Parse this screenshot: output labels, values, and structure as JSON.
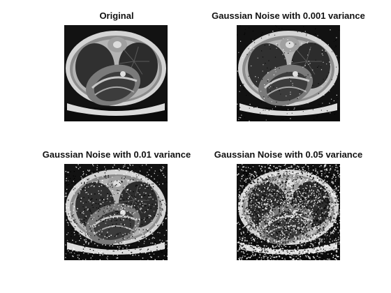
{
  "figure": {
    "panels": [
      {
        "id": "original",
        "title": "Original",
        "noise_variance": 0
      },
      {
        "id": "noise-0001",
        "title": "Gaussian Noise with 0.001 variance",
        "noise_variance": 0.001
      },
      {
        "id": "noise-001",
        "title": "Gaussian Noise with 0.01 variance",
        "noise_variance": 0.01
      },
      {
        "id": "noise-005",
        "title": "Gaussian Noise with 0.05 variance",
        "noise_variance": 0.05
      }
    ]
  }
}
